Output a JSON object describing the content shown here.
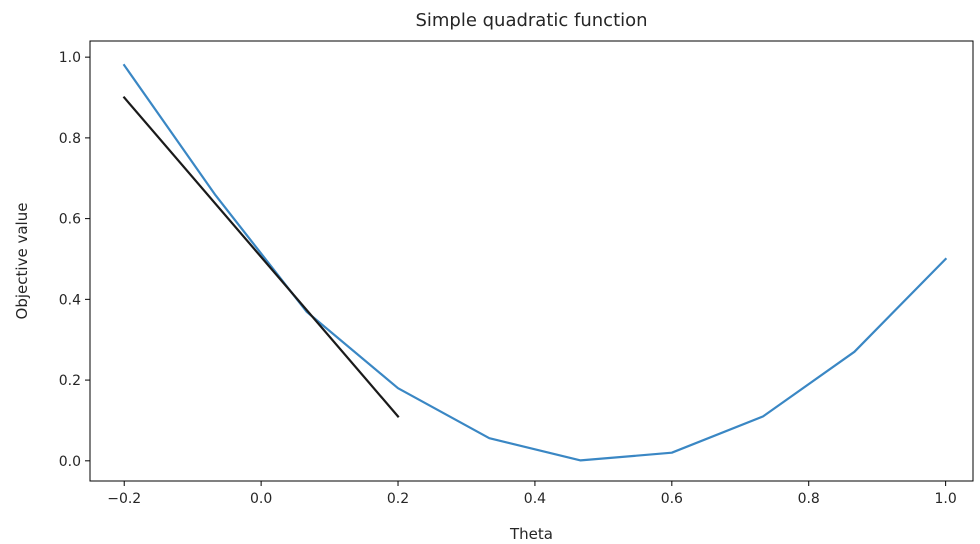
{
  "chart_data": {
    "type": "line",
    "title": "Simple quadratic function",
    "xlabel": "Theta",
    "ylabel": "Objective value",
    "xlim": [
      -0.25,
      1.04
    ],
    "ylim": [
      -0.05,
      1.04
    ],
    "xticks": [
      -0.2,
      0.0,
      0.2,
      0.4,
      0.6,
      0.8,
      1.0
    ],
    "xtick_labels": [
      "−0.2",
      "0.0",
      "0.2",
      "0.4",
      "0.6",
      "0.8",
      "1.0"
    ],
    "yticks": [
      0.0,
      0.2,
      0.4,
      0.6,
      0.8,
      1.0
    ],
    "ytick_labels": [
      "0.0",
      "0.2",
      "0.4",
      "0.6",
      "0.8",
      "1.0"
    ],
    "grid": false,
    "series": [
      {
        "color": "#3a87c4",
        "x": [
          -0.2,
          -0.0667,
          0.0667,
          0.2,
          0.3333,
          0.4667,
          0.6,
          0.7333,
          0.8667,
          1.0
        ],
        "y": [
          0.98,
          0.658,
          0.369,
          0.18,
          0.056,
          0.001,
          0.02,
          0.11,
          0.27,
          0.5
        ]
      },
      {
        "color": "#1a1a1a",
        "x": [
          -0.2,
          0.2
        ],
        "y": [
          0.9,
          0.11
        ]
      }
    ]
  }
}
